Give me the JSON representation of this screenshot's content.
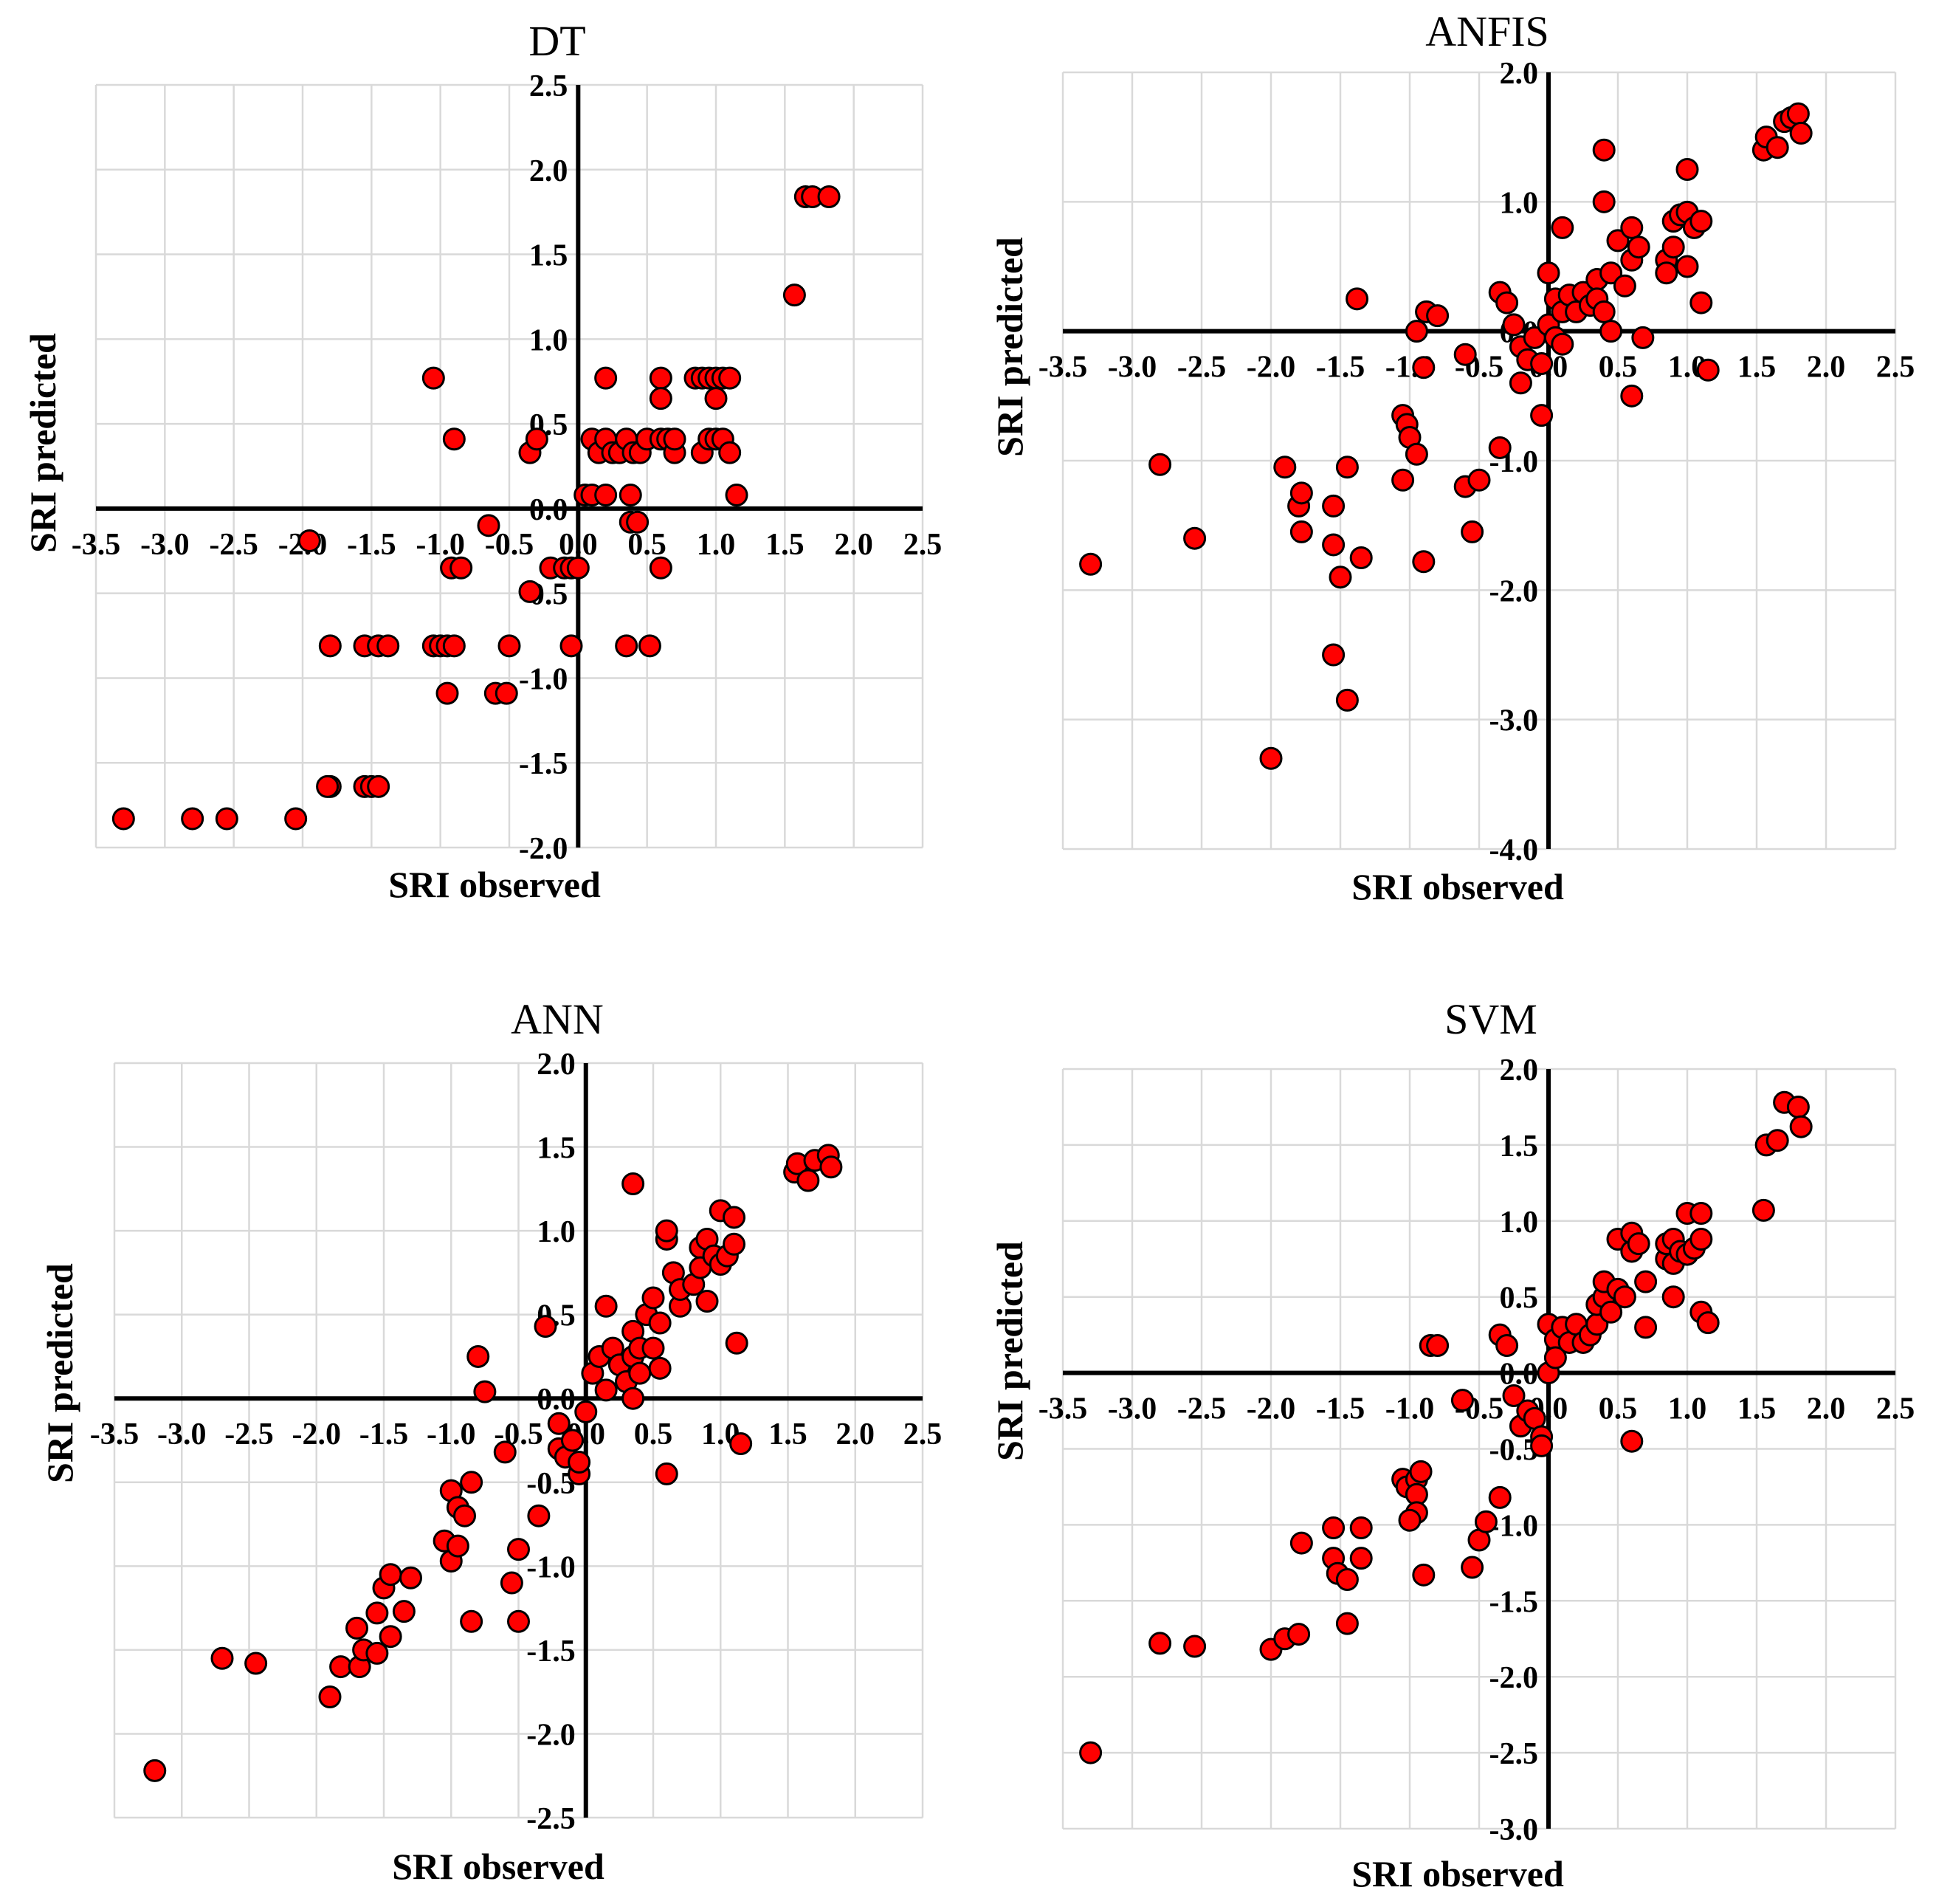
{
  "colors": {
    "marker": "#ff0000",
    "marker_edge": "#000000",
    "grid": "#d9d9d9",
    "axis": "#000000"
  },
  "chart_data": [
    {
      "id": "dt",
      "type": "scatter",
      "title": "DT",
      "xlabel": "SRI observed",
      "ylabel": "SRI predicted",
      "xlim": [
        -3.5,
        2.5
      ],
      "xstep": 0.5,
      "ylim": [
        -2.0,
        2.5
      ],
      "ystep": 0.5,
      "grid": true,
      "points": [
        [
          -3.3,
          -1.83
        ],
        [
          -2.8,
          -1.83
        ],
        [
          -2.55,
          -1.83
        ],
        [
          -2.05,
          -1.83
        ],
        [
          -1.8,
          -1.64
        ],
        [
          -1.82,
          -1.64
        ],
        [
          -1.55,
          -1.64
        ],
        [
          -1.5,
          -1.64
        ],
        [
          -1.45,
          -1.64
        ],
        [
          -1.95,
          -0.19
        ],
        [
          -1.8,
          -0.81
        ],
        [
          -1.55,
          -0.81
        ],
        [
          -1.45,
          -0.81
        ],
        [
          -1.38,
          -0.81
        ],
        [
          -1.05,
          -0.81
        ],
        [
          -1.0,
          -0.81
        ],
        [
          -0.95,
          -0.81
        ],
        [
          -0.9,
          -0.81
        ],
        [
          -0.5,
          -0.81
        ],
        [
          -0.05,
          -0.81
        ],
        [
          0.35,
          -0.81
        ],
        [
          0.52,
          -0.81
        ],
        [
          -0.95,
          -1.09
        ],
        [
          -0.6,
          -1.09
        ],
        [
          -0.52,
          -1.09
        ],
        [
          -1.05,
          0.77
        ],
        [
          -0.9,
          0.41
        ],
        [
          -0.35,
          0.33
        ],
        [
          -0.3,
          0.41
        ],
        [
          -0.92,
          -0.35
        ],
        [
          -0.85,
          -0.35
        ],
        [
          -0.65,
          -0.1
        ],
        [
          -0.35,
          -0.49
        ],
        [
          -0.2,
          -0.35
        ],
        [
          -0.1,
          -0.35
        ],
        [
          -0.05,
          -0.35
        ],
        [
          0.0,
          -0.35
        ],
        [
          0.6,
          -0.35
        ],
        [
          0.05,
          0.08
        ],
        [
          0.1,
          0.08
        ],
        [
          0.2,
          0.08
        ],
        [
          0.38,
          0.08
        ],
        [
          0.1,
          0.41
        ],
        [
          0.15,
          0.33
        ],
        [
          0.2,
          0.41
        ],
        [
          0.25,
          0.33
        ],
        [
          0.3,
          0.33
        ],
        [
          0.35,
          0.41
        ],
        [
          0.4,
          0.33
        ],
        [
          0.45,
          0.33
        ],
        [
          0.5,
          0.41
        ],
        [
          0.6,
          0.41
        ],
        [
          0.65,
          0.41
        ],
        [
          0.7,
          0.33
        ],
        [
          0.7,
          0.41
        ],
        [
          0.9,
          0.33
        ],
        [
          0.95,
          0.41
        ],
        [
          1.0,
          0.41
        ],
        [
          1.05,
          0.41
        ],
        [
          1.1,
          0.33
        ],
        [
          0.38,
          -0.08
        ],
        [
          0.43,
          -0.08
        ],
        [
          0.2,
          0.77
        ],
        [
          0.6,
          0.77
        ],
        [
          0.6,
          0.65
        ],
        [
          0.85,
          0.77
        ],
        [
          0.9,
          0.77
        ],
        [
          0.95,
          0.77
        ],
        [
          1.0,
          0.77
        ],
        [
          1.05,
          0.77
        ],
        [
          1.1,
          0.77
        ],
        [
          1.0,
          0.65
        ],
        [
          1.15,
          0.08
        ],
        [
          1.57,
          1.26
        ],
        [
          1.65,
          1.84
        ],
        [
          1.7,
          1.84
        ],
        [
          1.82,
          1.84
        ]
      ]
    },
    {
      "id": "anfis",
      "type": "scatter",
      "title": "ANFIS",
      "xlabel": "SRI observed",
      "ylabel": "SRI predicted",
      "xlim": [
        -3.5,
        2.5
      ],
      "xstep": 0.5,
      "ylim": [
        -4.0,
        2.0
      ],
      "ystep": 1.0,
      "grid": true,
      "points": [
        [
          -3.3,
          -1.8
        ],
        [
          -2.8,
          -1.03
        ],
        [
          -2.55,
          -1.6
        ],
        [
          -2.0,
          -3.3
        ],
        [
          -1.9,
          -1.05
        ],
        [
          -1.8,
          -1.35
        ],
        [
          -1.78,
          -1.25
        ],
        [
          -1.78,
          -1.55
        ],
        [
          -1.55,
          -1.35
        ],
        [
          -1.55,
          -1.65
        ],
        [
          -1.55,
          -2.5
        ],
        [
          -1.5,
          -1.9
        ],
        [
          -1.45,
          -1.05
        ],
        [
          -1.45,
          -2.85
        ],
        [
          -1.35,
          -1.75
        ],
        [
          -1.38,
          0.25
        ],
        [
          -1.05,
          -0.65
        ],
        [
          -1.02,
          -0.72
        ],
        [
          -1.0,
          -0.82
        ],
        [
          -1.05,
          -1.15
        ],
        [
          -0.95,
          -0.95
        ],
        [
          -0.9,
          -1.78
        ],
        [
          -0.95,
          0.0
        ],
        [
          -0.88,
          0.15
        ],
        [
          -0.8,
          0.12
        ],
        [
          -0.9,
          -0.28
        ],
        [
          -0.6,
          -0.18
        ],
        [
          -0.6,
          -1.2
        ],
        [
          -0.55,
          -1.55
        ],
        [
          -0.5,
          -1.15
        ],
        [
          -0.35,
          -0.9
        ],
        [
          -0.35,
          0.3
        ],
        [
          -0.3,
          0.22
        ],
        [
          -0.25,
          0.05
        ],
        [
          -0.2,
          -0.4
        ],
        [
          -0.2,
          -0.12
        ],
        [
          -0.15,
          -0.22
        ],
        [
          -0.1,
          -0.05
        ],
        [
          -0.05,
          -0.25
        ],
        [
          -0.05,
          -0.65
        ],
        [
          0.0,
          0.05
        ],
        [
          0.0,
          0.45
        ],
        [
          0.05,
          0.25
        ],
        [
          0.05,
          -0.05
        ],
        [
          0.1,
          0.15
        ],
        [
          0.1,
          -0.1
        ],
        [
          0.1,
          0.8
        ],
        [
          0.15,
          0.28
        ],
        [
          0.2,
          0.15
        ],
        [
          0.25,
          0.3
        ],
        [
          0.3,
          0.2
        ],
        [
          0.35,
          0.4
        ],
        [
          0.35,
          0.25
        ],
        [
          0.4,
          0.15
        ],
        [
          0.4,
          1.0
        ],
        [
          0.4,
          1.4
        ],
        [
          0.45,
          0.45
        ],
        [
          0.45,
          0.0
        ],
        [
          0.5,
          0.7
        ],
        [
          0.55,
          0.35
        ],
        [
          0.6,
          0.55
        ],
        [
          0.6,
          0.8
        ],
        [
          0.65,
          0.65
        ],
        [
          0.6,
          -0.5
        ],
        [
          0.68,
          -0.05
        ],
        [
          0.85,
          0.55
        ],
        [
          0.85,
          0.45
        ],
        [
          0.9,
          0.65
        ],
        [
          0.9,
          0.85
        ],
        [
          0.95,
          0.9
        ],
        [
          1.0,
          0.5
        ],
        [
          1.0,
          0.92
        ],
        [
          1.0,
          1.25
        ],
        [
          1.05,
          0.8
        ],
        [
          1.1,
          0.22
        ],
        [
          1.1,
          0.85
        ],
        [
          1.15,
          -0.3
        ],
        [
          1.55,
          1.4
        ],
        [
          1.57,
          1.5
        ],
        [
          1.65,
          1.42
        ],
        [
          1.7,
          1.62
        ],
        [
          1.75,
          1.65
        ],
        [
          1.8,
          1.68
        ],
        [
          1.82,
          1.53
        ]
      ]
    },
    {
      "id": "ann",
      "type": "scatter",
      "title": "ANN",
      "xlabel": "SRI observed",
      "ylabel": "SRI predicted",
      "xlim": [
        -3.5,
        2.5
      ],
      "xstep": 0.5,
      "ylim": [
        -2.5,
        2.0
      ],
      "ystep": 0.5,
      "grid": true,
      "points": [
        [
          -3.2,
          -2.22
        ],
        [
          -2.7,
          -1.55
        ],
        [
          -2.45,
          -1.58
        ],
        [
          -1.9,
          -1.78
        ],
        [
          -1.82,
          -1.6
        ],
        [
          -1.7,
          -1.37
        ],
        [
          -1.68,
          -1.6
        ],
        [
          -1.65,
          -1.5
        ],
        [
          -1.55,
          -1.28
        ],
        [
          -1.55,
          -1.52
        ],
        [
          -1.5,
          -1.13
        ],
        [
          -1.45,
          -1.05
        ],
        [
          -1.45,
          -1.42
        ],
        [
          -1.35,
          -1.27
        ],
        [
          -1.3,
          -1.07
        ],
        [
          -1.05,
          -0.85
        ],
        [
          -1.0,
          -0.55
        ],
        [
          -1.0,
          -0.97
        ],
        [
          -0.95,
          -0.65
        ],
        [
          -0.95,
          -0.88
        ],
        [
          -0.9,
          -0.7
        ],
        [
          -0.85,
          -0.5
        ],
        [
          -0.85,
          -1.33
        ],
        [
          -0.8,
          0.25
        ],
        [
          -0.75,
          0.04
        ],
        [
          -0.6,
          -0.32
        ],
        [
          -0.55,
          -1.1
        ],
        [
          -0.5,
          -0.9
        ],
        [
          -0.5,
          -1.33
        ],
        [
          -0.35,
          -0.7
        ],
        [
          -0.3,
          0.43
        ],
        [
          -0.2,
          -0.15
        ],
        [
          -0.2,
          -0.3
        ],
        [
          -0.15,
          -0.35
        ],
        [
          -0.1,
          -0.25
        ],
        [
          -0.05,
          -0.45
        ],
        [
          -0.05,
          -0.38
        ],
        [
          0.0,
          -0.08
        ],
        [
          0.05,
          0.15
        ],
        [
          0.1,
          0.25
        ],
        [
          0.15,
          0.55
        ],
        [
          0.15,
          0.05
        ],
        [
          0.2,
          0.3
        ],
        [
          0.25,
          0.2
        ],
        [
          0.3,
          0.1
        ],
        [
          0.35,
          0.25
        ],
        [
          0.35,
          0.4
        ],
        [
          0.35,
          0.0
        ],
        [
          0.4,
          0.15
        ],
        [
          0.4,
          0.3
        ],
        [
          0.45,
          0.5
        ],
        [
          0.5,
          0.6
        ],
        [
          0.5,
          0.3
        ],
        [
          0.55,
          0.18
        ],
        [
          0.35,
          1.28
        ],
        [
          0.55,
          0.45
        ],
        [
          0.6,
          0.95
        ],
        [
          0.6,
          1.0
        ],
        [
          0.65,
          0.75
        ],
        [
          0.7,
          0.55
        ],
        [
          0.7,
          0.65
        ],
        [
          0.6,
          -0.45
        ],
        [
          0.8,
          0.68
        ],
        [
          0.85,
          0.9
        ],
        [
          0.85,
          0.78
        ],
        [
          0.9,
          0.95
        ],
        [
          0.9,
          0.58
        ],
        [
          0.95,
          0.85
        ],
        [
          1.0,
          1.12
        ],
        [
          1.0,
          0.8
        ],
        [
          1.05,
          0.85
        ],
        [
          1.1,
          0.92
        ],
        [
          1.1,
          1.08
        ],
        [
          1.12,
          0.33
        ],
        [
          1.15,
          -0.27
        ],
        [
          1.55,
          1.35
        ],
        [
          1.57,
          1.4
        ],
        [
          1.65,
          1.3
        ],
        [
          1.7,
          1.42
        ],
        [
          1.8,
          1.45
        ],
        [
          1.82,
          1.38
        ]
      ]
    },
    {
      "id": "svm",
      "type": "scatter",
      "title": "SVM",
      "xlabel": "SRI observed",
      "ylabel": "SRI predicted",
      "xlim": [
        -3.5,
        2.5
      ],
      "xstep": 0.5,
      "ylim": [
        -3.0,
        2.0
      ],
      "ystep": 0.5,
      "grid": true,
      "points": [
        [
          -3.3,
          -2.5
        ],
        [
          -2.8,
          -1.78
        ],
        [
          -2.55,
          -1.8
        ],
        [
          -2.0,
          -1.82
        ],
        [
          -1.9,
          -1.75
        ],
        [
          -1.8,
          -1.72
        ],
        [
          -1.78,
          -1.12
        ],
        [
          -1.55,
          -1.02
        ],
        [
          -1.55,
          -1.22
        ],
        [
          -1.52,
          -1.32
        ],
        [
          -1.45,
          -1.36
        ],
        [
          -1.45,
          -1.65
        ],
        [
          -1.35,
          -1.02
        ],
        [
          -1.35,
          -1.22
        ],
        [
          -1.05,
          -0.7
        ],
        [
          -1.02,
          -0.75
        ],
        [
          -0.95,
          -0.7
        ],
        [
          -0.95,
          -0.8
        ],
        [
          -0.95,
          -0.92
        ],
        [
          -1.0,
          -0.97
        ],
        [
          -0.92,
          -0.65
        ],
        [
          -0.9,
          -1.33
        ],
        [
          -0.85,
          0.18
        ],
        [
          -0.8,
          0.18
        ],
        [
          -0.62,
          -0.18
        ],
        [
          -0.55,
          -1.28
        ],
        [
          -0.5,
          -1.1
        ],
        [
          -0.45,
          -0.98
        ],
        [
          -0.35,
          -0.82
        ],
        [
          -0.35,
          0.25
        ],
        [
          -0.3,
          0.18
        ],
        [
          -0.25,
          -0.15
        ],
        [
          -0.2,
          -0.35
        ],
        [
          -0.15,
          -0.25
        ],
        [
          -0.1,
          -0.3
        ],
        [
          -0.05,
          -0.42
        ],
        [
          -0.05,
          -0.48
        ],
        [
          0.0,
          0.0
        ],
        [
          0.0,
          0.32
        ],
        [
          0.05,
          0.22
        ],
        [
          0.05,
          0.1
        ],
        [
          0.1,
          0.3
        ],
        [
          0.15,
          0.2
        ],
        [
          0.2,
          0.32
        ],
        [
          0.25,
          0.2
        ],
        [
          0.3,
          0.25
        ],
        [
          0.35,
          0.32
        ],
        [
          0.35,
          0.45
        ],
        [
          0.4,
          0.5
        ],
        [
          0.4,
          0.6
        ],
        [
          0.45,
          0.4
        ],
        [
          0.5,
          0.55
        ],
        [
          0.5,
          0.88
        ],
        [
          0.55,
          0.5
        ],
        [
          0.6,
          0.8
        ],
        [
          0.6,
          0.92
        ],
        [
          0.65,
          0.85
        ],
        [
          0.7,
          0.6
        ],
        [
          0.7,
          0.3
        ],
        [
          0.6,
          -0.45
        ],
        [
          0.85,
          0.75
        ],
        [
          0.85,
          0.85
        ],
        [
          0.9,
          0.72
        ],
        [
          0.9,
          0.88
        ],
        [
          0.9,
          0.5
        ],
        [
          0.95,
          0.8
        ],
        [
          1.0,
          1.05
        ],
        [
          1.0,
          0.78
        ],
        [
          1.05,
          0.82
        ],
        [
          1.1,
          1.05
        ],
        [
          1.1,
          0.88
        ],
        [
          1.1,
          0.4
        ],
        [
          1.15,
          0.33
        ],
        [
          1.55,
          1.07
        ],
        [
          1.57,
          1.5
        ],
        [
          1.65,
          1.53
        ],
        [
          1.7,
          1.78
        ],
        [
          1.8,
          1.75
        ],
        [
          1.82,
          1.62
        ]
      ]
    }
  ]
}
